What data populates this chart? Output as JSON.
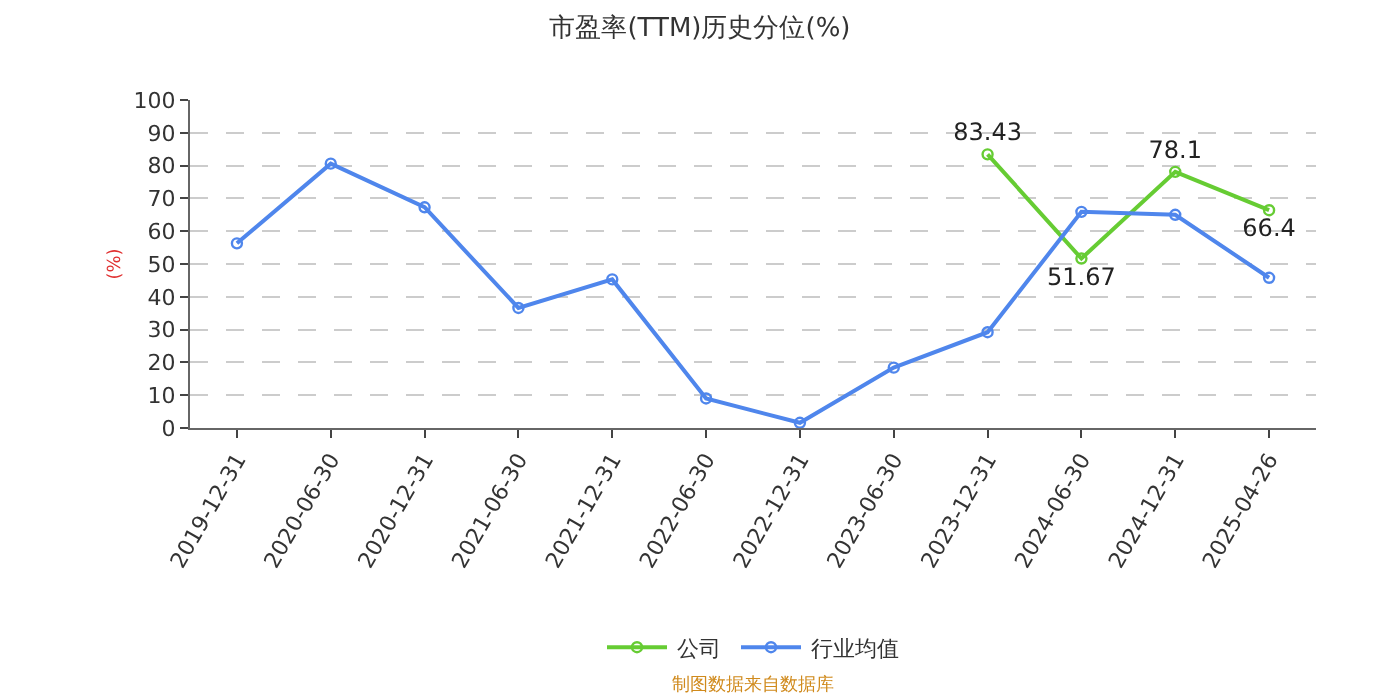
{
  "chart_data": {
    "type": "line",
    "title": "市盈率(TTM)历史分位(%)",
    "ylabel": "(%)",
    "annotations": [
      "制图数据来自数据库"
    ],
    "categories": [
      "2019-12-31",
      "2020-06-30",
      "2020-12-31",
      "2021-06-30",
      "2021-12-31",
      "2022-06-30",
      "2022-12-31",
      "2023-06-30",
      "2023-12-31",
      "2024-06-30",
      "2024-12-31",
      "2025-04-26"
    ],
    "series": [
      {
        "name": "公司",
        "color": "#66cc33",
        "values": [
          null,
          null,
          null,
          null,
          null,
          null,
          null,
          null,
          83.43,
          51.67,
          78.1,
          66.4
        ],
        "value_labels": [
          null,
          null,
          null,
          null,
          null,
          null,
          null,
          null,
          "83.43",
          "51.67",
          "78.1",
          "66.4"
        ]
      },
      {
        "name": "行业均值",
        "color": "#4f86ec",
        "values": [
          56.3,
          80.6,
          67.3,
          36.6,
          45.3,
          9.0,
          1.6,
          18.4,
          29.2,
          65.9,
          65.0,
          45.8
        ]
      }
    ],
    "ylim": [
      0,
      100
    ],
    "yticks": [
      0,
      10,
      20,
      30,
      40,
      50,
      60,
      70,
      80,
      90,
      100
    ],
    "grid": "y",
    "legend": "bottom",
    "marker": "circle",
    "line_style": "solid"
  }
}
